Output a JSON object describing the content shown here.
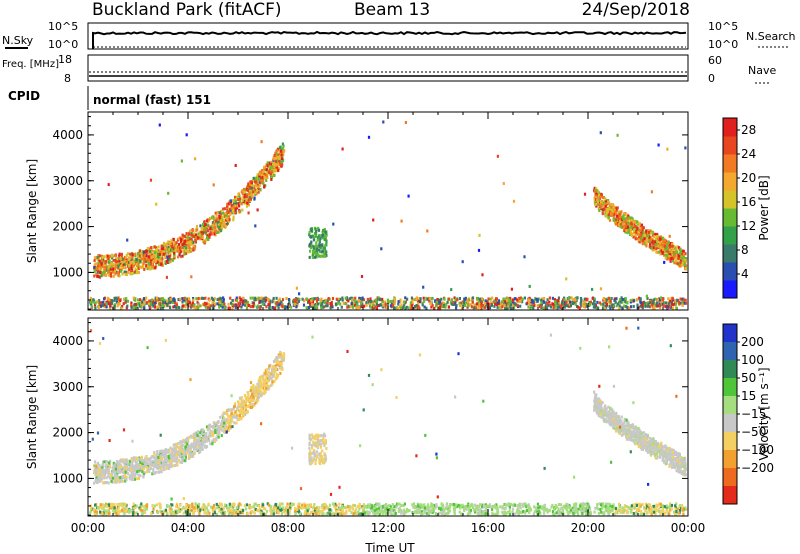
{
  "header": {
    "title": "Buckland Park (fitACF)",
    "beam": "Beam 13",
    "date": "24/Sep/2018"
  },
  "summary": {
    "nsky_label": "N.Sky",
    "nsearch_label": "N.Search",
    "noise_ticks": [
      "10^5",
      "10^0"
    ],
    "noise_ticks_right": [
      "10^5",
      "10^0"
    ],
    "freq_label": "Freq. [MHz]",
    "freq_ticks": [
      "18",
      "8"
    ],
    "nave_label": "Nave",
    "nave_ticks": [
      "60",
      "0"
    ],
    "cpid_label": "CPID",
    "cpid_text": "normal (fast) 151"
  },
  "chart_data": [
    {
      "type": "heatmap",
      "name": "power",
      "ylabel": "Slant Range [km]",
      "yticks": [
        1000,
        2000,
        3000,
        4000
      ],
      "ylim": [
        180,
        4500
      ],
      "xlim": [
        0,
        24
      ],
      "xticks": [
        "00:00",
        "04:00",
        "08:00",
        "12:00",
        "16:00",
        "20:00",
        "00:00"
      ],
      "colorbar": {
        "label": "Power [dB]",
        "ticks": [
          "4",
          "8",
          "12",
          "16",
          "20",
          "24",
          "28"
        ],
        "colors": [
          "#1a1aff",
          "#2a4fb0",
          "#3a7a6a",
          "#33a04a",
          "#66bb33",
          "#d4c42a",
          "#f3a830",
          "#f17a22",
          "#e8461e",
          "#e0201c"
        ]
      },
      "features": [
        {
          "desc": "morning band",
          "t_start": 0.2,
          "t_end": 7.8,
          "range_start_km": 1300,
          "range_end_km": 3800,
          "dominant_db": 20
        },
        {
          "desc": "patch",
          "t_start": 8.8,
          "t_end": 9.5,
          "range_start_km": 1350,
          "range_end_km": 2000,
          "dominant_db": 12
        },
        {
          "desc": "evening band",
          "t_start": 20.2,
          "t_end": 23.9,
          "range_start_km": 2800,
          "range_end_km": 1300,
          "dominant_db": 20
        },
        {
          "desc": "near-range echoes",
          "t_start": 0,
          "t_end": 24,
          "range_start_km": 200,
          "range_end_km": 450,
          "dominant_db": 16
        }
      ]
    },
    {
      "type": "heatmap",
      "name": "velocity",
      "ylabel": "Slant Range [km]",
      "yticks": [
        1000,
        2000,
        3000,
        4000
      ],
      "ylim": [
        180,
        4500
      ],
      "xlim": [
        0,
        24
      ],
      "xticks": [
        "00:00",
        "04:00",
        "08:00",
        "12:00",
        "16:00",
        "20:00",
        "00:00"
      ],
      "xlabel": "Time UT",
      "colorbar": {
        "label": "Velocity [m s⁻¹]",
        "ticks": [
          "200",
          "100",
          "50",
          "15",
          "−15",
          "−50",
          "−100",
          "−200"
        ],
        "colors": [
          "#2233cc",
          "#2f64b0",
          "#2f8a56",
          "#4fc53a",
          "#a6dd7f",
          "#c8c8c8",
          "#f2d061",
          "#f2a030",
          "#ee6a1e",
          "#e42a1a"
        ]
      },
      "features": [
        {
          "desc": "morning band",
          "t_start": 0.2,
          "t_end": 7.8,
          "range_start_km": 1300,
          "range_end_km": 3800,
          "dominant_ms": -15
        },
        {
          "desc": "patch",
          "t_start": 8.8,
          "t_end": 9.5,
          "range_start_km": 1350,
          "range_end_km": 2000,
          "dominant_ms": -30
        },
        {
          "desc": "evening band",
          "t_start": 20.2,
          "t_end": 23.9,
          "range_start_km": 2800,
          "range_end_km": 1300,
          "dominant_ms": 0
        },
        {
          "desc": "near-range echoes",
          "t_start": 0,
          "t_end": 24,
          "range_start_km": 200,
          "range_end_km": 450,
          "dominant_ms": 20
        }
      ]
    }
  ]
}
